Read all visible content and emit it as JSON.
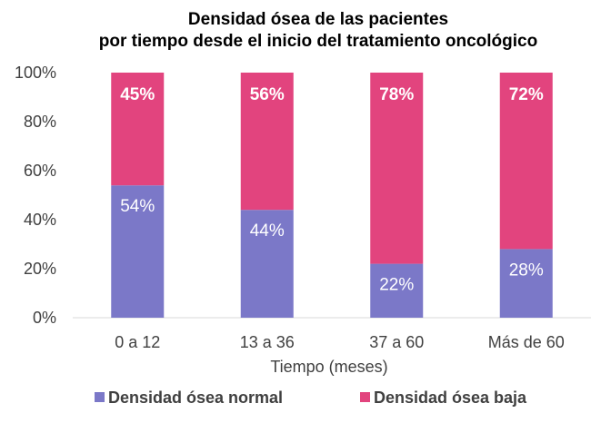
{
  "chart_data": {
    "type": "bar",
    "stacked": true,
    "title_lines": [
      "Densidad ósea de las pacientes",
      "por tiempo desde el inicio del tratamiento oncológico"
    ],
    "xlabel": "Tiempo (meses)",
    "ylabel": "",
    "ylim": [
      0,
      100
    ],
    "yticks": [
      "0%",
      "20%",
      "40%",
      "60%",
      "80%",
      "100%"
    ],
    "categories": [
      "0 a 12",
      "13 a 36",
      "37 a 60",
      "Más de 60"
    ],
    "series": [
      {
        "name": "Densidad ósea normal",
        "color": "#7B78C8",
        "values": [
          54,
          44,
          22,
          28
        ],
        "labels": [
          "54%",
          "44%",
          "22%",
          "28%"
        ],
        "label_color": "#ffffff",
        "label_bold": false
      },
      {
        "name": "Densidad ósea baja",
        "color": "#E2447E",
        "values": [
          45,
          56,
          78,
          72
        ],
        "labels": [
          "45%",
          "56%",
          "78%",
          "72%"
        ],
        "label_color": "#ffffff",
        "label_bold": true
      }
    ],
    "grid": false,
    "legend_position": "bottom"
  }
}
